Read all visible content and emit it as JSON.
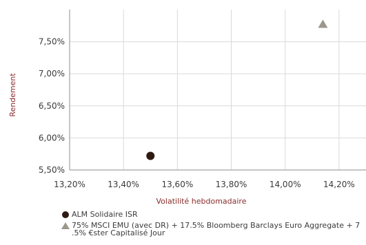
{
  "chart_data": {
    "type": "scatter",
    "xlabel": "Volatilité hebdomadaire",
    "ylabel": "Rendement",
    "xlim": [
      13.2,
      14.3
    ],
    "ylim": [
      5.5,
      8.0
    ],
    "x_ticks": [
      "13,20%",
      "13,40%",
      "13,60%",
      "13,80%",
      "14,00%",
      "14,20%"
    ],
    "x_tick_values": [
      13.2,
      13.4,
      13.6,
      13.8,
      14.0,
      14.2
    ],
    "y_ticks": [
      "5,50%",
      "6,00%",
      "6,50%",
      "7,00%",
      "7,50%"
    ],
    "y_tick_values": [
      5.5,
      6.0,
      6.5,
      7.0,
      7.5
    ],
    "grid": true,
    "legend_position": "bottom",
    "series": [
      {
        "name": "ALM Solidaire ISR",
        "marker": "circle",
        "color": "#2e1a12",
        "points": [
          {
            "x": 13.5,
            "y": 5.72
          }
        ]
      },
      {
        "name": "75% MSCI EMU (avec DR) + 17.5% Bloomberg Barclays Euro Aggregate + 7 .5% €ster Capitalisé Jour",
        "marker": "triangle",
        "color": "#9b978a",
        "points": [
          {
            "x": 14.14,
            "y": 7.78
          }
        ]
      }
    ]
  }
}
